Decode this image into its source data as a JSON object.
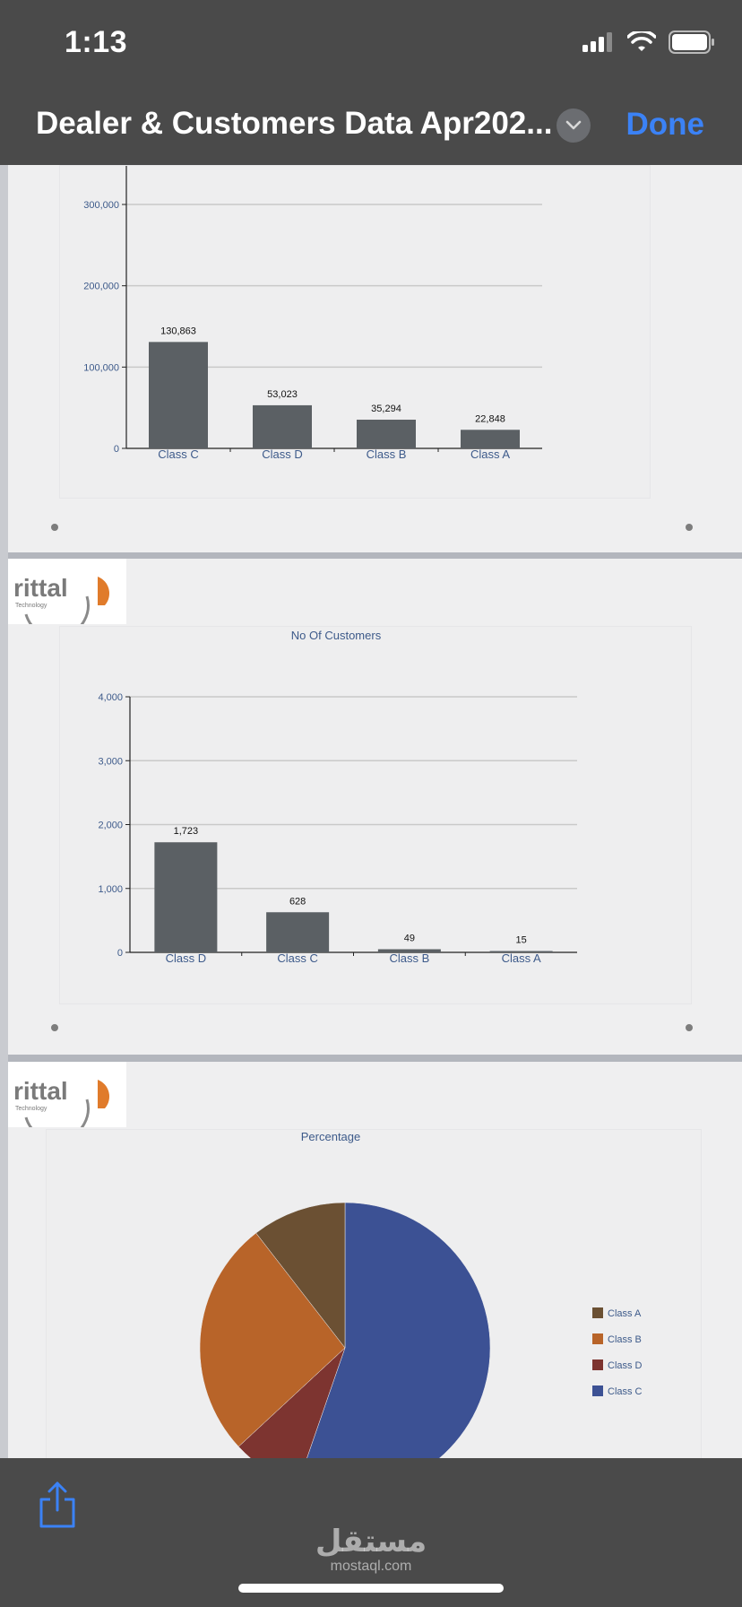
{
  "status_bar": {
    "time": "1:13"
  },
  "nav": {
    "title": "Dealer & Customers Data Apr202...",
    "done_label": "Done"
  },
  "logo": {
    "brand": "rittal",
    "tagline": "Technology"
  },
  "colors": {
    "bar": "#5b6064",
    "accent_blue": "#3b82f6"
  },
  "chart_data": [
    {
      "type": "bar",
      "title": "",
      "categories": [
        "Class C",
        "Class D",
        "Class B",
        "Class A"
      ],
      "values": [
        130863,
        53023,
        35294,
        22848
      ],
      "value_labels": [
        "130,863",
        "53,023",
        "35,294",
        "22,848"
      ],
      "yticks": [
        "0",
        "100,000",
        "200,000",
        "300,000"
      ],
      "ylim": [
        0,
        300000
      ],
      "grid": true
    },
    {
      "type": "bar",
      "title": "No Of Customers",
      "categories": [
        "Class D",
        "Class C",
        "Class B",
        "Class A"
      ],
      "values": [
        1723,
        628,
        49,
        15
      ],
      "value_labels": [
        "1,723",
        "628",
        "49",
        "15"
      ],
      "yticks": [
        "0",
        "1,000",
        "2,000",
        "3,000",
        "4,000"
      ],
      "ylim": [
        0,
        4000
      ],
      "grid": true
    },
    {
      "type": "pie",
      "title": "Percentage",
      "labels": [
        "Class C",
        "Class D",
        "Class B",
        "Class A"
      ],
      "values": [
        55.3,
        7.8,
        26.4,
        10.5
      ],
      "colors": [
        "#3c5194",
        "#7d3430",
        "#b86429",
        "#6b5033"
      ],
      "legend": [
        {
          "label": "Class A",
          "color": "#6b5033"
        },
        {
          "label": "Class B",
          "color": "#b86429"
        },
        {
          "label": "Class D",
          "color": "#7d3430"
        },
        {
          "label": "Class C",
          "color": "#3c5194"
        }
      ],
      "legend_position": "right"
    }
  ],
  "watermark": {
    "arabic": "مستقل",
    "latin": "mostaql.com"
  }
}
